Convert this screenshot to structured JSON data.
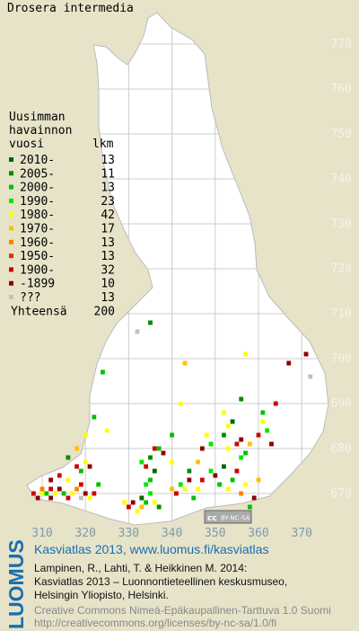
{
  "map": {
    "title": "Drosera intermedia",
    "legend_heading": [
      "Uusimman",
      "havainnon",
      "vuosi"
    ],
    "count_heading": "lkm",
    "legend": [
      {
        "label": "2010-",
        "count": 13,
        "color": "#006400"
      },
      {
        "label": "2005-",
        "count": 11,
        "color": "#008c00"
      },
      {
        "label": "2000-",
        "count": 13,
        "color": "#00c000"
      },
      {
        "label": "1990-",
        "count": 23,
        "color": "#00e600"
      },
      {
        "label": "1980-",
        "count": 42,
        "color": "#ffff00"
      },
      {
        "label": "1970-",
        "count": 17,
        "color": "#ffc000"
      },
      {
        "label": "1960-",
        "count": 13,
        "color": "#ff8000"
      },
      {
        "label": "1950-",
        "count": 13,
        "color": "#e83000"
      },
      {
        "label": "1900-",
        "count": 32,
        "color": "#d00000"
      },
      {
        "label": "-1899",
        "count": 10,
        "color": "#8c0000"
      },
      {
        "label": "???",
        "count": 13,
        "color": "#c0c0c0"
      }
    ],
    "total_label": "Yhteensä",
    "total": 200,
    "xticks": [
      310,
      320,
      330,
      340,
      350,
      360,
      370
    ],
    "yticks": [
      670,
      680,
      690,
      700,
      710,
      720,
      730,
      740,
      750,
      760,
      770
    ],
    "squares": [
      [
        308,
        670,
        8
      ],
      [
        309,
        669,
        9
      ],
      [
        310,
        670,
        4
      ],
      [
        310,
        671,
        6
      ],
      [
        311,
        670,
        2
      ],
      [
        312,
        669,
        9
      ],
      [
        312,
        671,
        8
      ],
      [
        313,
        670,
        4
      ],
      [
        314,
        671,
        9
      ],
      [
        315,
        670,
        2
      ],
      [
        316,
        669,
        8
      ],
      [
        317,
        670,
        4
      ],
      [
        318,
        671,
        6
      ],
      [
        319,
        669,
        10
      ],
      [
        319,
        672,
        8
      ],
      [
        320,
        670,
        9
      ],
      [
        321,
        669,
        4
      ],
      [
        322,
        670,
        8
      ],
      [
        323,
        672,
        2
      ],
      [
        312,
        673,
        9
      ],
      [
        314,
        674,
        8
      ],
      [
        316,
        673,
        4
      ],
      [
        318,
        676,
        8
      ],
      [
        316,
        678,
        1
      ],
      [
        320,
        677,
        4
      ],
      [
        319,
        675,
        2
      ],
      [
        321,
        676,
        9
      ],
      [
        318,
        680,
        5
      ],
      [
        320,
        683,
        4
      ],
      [
        322,
        687,
        2
      ],
      [
        329,
        668,
        4
      ],
      [
        330,
        667,
        8
      ],
      [
        331,
        668,
        9
      ],
      [
        332,
        666,
        4
      ],
      [
        333,
        667,
        5
      ],
      [
        334,
        668,
        2
      ],
      [
        333,
        669,
        0
      ],
      [
        335,
        670,
        3
      ],
      [
        336,
        668,
        4
      ],
      [
        337,
        667,
        1
      ],
      [
        334,
        672,
        3
      ],
      [
        335,
        673,
        2
      ],
      [
        336,
        675,
        0
      ],
      [
        334,
        676,
        8
      ],
      [
        333,
        677,
        3
      ],
      [
        335,
        678,
        1
      ],
      [
        336,
        680,
        8
      ],
      [
        337,
        680,
        2
      ],
      [
        338,
        679,
        9
      ],
      [
        340,
        671,
        5
      ],
      [
        341,
        670,
        8
      ],
      [
        342,
        672,
        3
      ],
      [
        343,
        671,
        4
      ],
      [
        344,
        673,
        9
      ],
      [
        345,
        669,
        2
      ],
      [
        346,
        671,
        4
      ],
      [
        344,
        675,
        1
      ],
      [
        347,
        673,
        8
      ],
      [
        349,
        675,
        3
      ],
      [
        351,
        672,
        2
      ],
      [
        350,
        674,
        9
      ],
      [
        352,
        676,
        0
      ],
      [
        353,
        671,
        4
      ],
      [
        354,
        673,
        2
      ],
      [
        355,
        675,
        8
      ],
      [
        356,
        670,
        6
      ],
      [
        357,
        672,
        4
      ],
      [
        358,
        667,
        2
      ],
      [
        359,
        669,
        9
      ],
      [
        360,
        673,
        5
      ],
      [
        356,
        678,
        3
      ],
      [
        353,
        680,
        4
      ],
      [
        355,
        681,
        8
      ],
      [
        357,
        679,
        2
      ],
      [
        352,
        683,
        1
      ],
      [
        353,
        685,
        4
      ],
      [
        354,
        686,
        0
      ],
      [
        352,
        688,
        4
      ],
      [
        356,
        682,
        9
      ],
      [
        358,
        681,
        5
      ],
      [
        360,
        683,
        8
      ],
      [
        361,
        686,
        4
      ],
      [
        362,
        684,
        3
      ],
      [
        361,
        688,
        2
      ],
      [
        363,
        681,
        9
      ],
      [
        364,
        690,
        8
      ],
      [
        349,
        681,
        3
      ],
      [
        348,
        683,
        4
      ],
      [
        347,
        680,
        9
      ],
      [
        346,
        677,
        5
      ],
      [
        340,
        677,
        4
      ],
      [
        340,
        683,
        2
      ],
      [
        342,
        690,
        4
      ],
      [
        332,
        706,
        10
      ],
      [
        335,
        708,
        1
      ],
      [
        324,
        697,
        2
      ],
      [
        343,
        699,
        5
      ],
      [
        357,
        701,
        4
      ],
      [
        371,
        701,
        9
      ],
      [
        372,
        696,
        10
      ],
      [
        367,
        699,
        9
      ],
      [
        356,
        691,
        1
      ],
      [
        325,
        684,
        4
      ]
    ],
    "badge": [
      "cc",
      "BY-NC-SA"
    ]
  },
  "footer": {
    "logo": "LUOMUS",
    "headline": "Kasviatlas 2013, www.luomus.fi/kasviatlas",
    "citation": [
      "Lampinen, R., Lahti, T. & Heikkinen M. 2014:",
      "Kasviatlas 2013 – Luonnontieteellinen keskusmuseo,",
      "Helsingin Yliopisto, Helsinki."
    ],
    "license": [
      "Creative Commons Nimeä-Epäkaupallinen-Tarttuva 1.0 Suomi",
      "http://creativecommons.org/licenses/by-nc-sa/1.0/fi"
    ]
  }
}
